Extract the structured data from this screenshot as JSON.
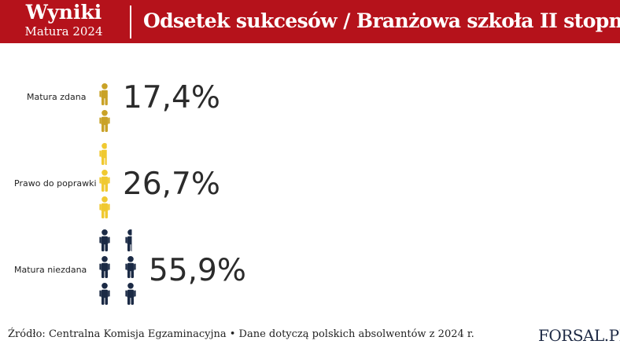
{
  "header": {
    "brand_title": "Wyniki",
    "brand_subtitle": "Matura  2024",
    "title": "Odsetek sukcesów / Branżowa szkoła II stopnia"
  },
  "footer": {
    "source": "Źródło: Centralna Komisja Egzaminacyjna • Dane dotyczą polskich absolwentów z 2024 r.",
    "logo": "FORSAL.PL"
  },
  "colors": {
    "header_bg": "#b5121b",
    "matura_zdana": "#c9a227",
    "prawo_do_poprawki": "#f0c930",
    "matura_niezdana": "#1b2a45"
  },
  "chart_data": {
    "type": "pictogram",
    "unit": "%",
    "icons_per_percent": 0.1,
    "categories": [
      "Matura zdana",
      "Prawo do poprawki",
      "Matura niezdana"
    ],
    "values": [
      17.4,
      26.7,
      55.9
    ],
    "labels": [
      "17,4%",
      "26,7%",
      "55,9%"
    ]
  }
}
